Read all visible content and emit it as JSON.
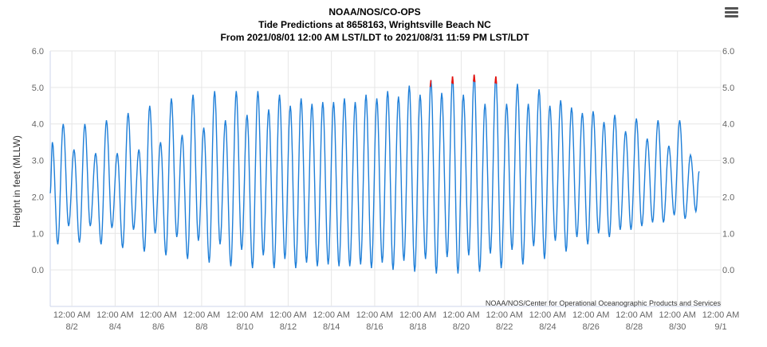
{
  "header": {
    "line1": "NOAA/NOS/CO-OPS",
    "line2": "Tide Predictions at 8658163, Wrightsville Beach NC",
    "line3": "From 2021/08/01 12:00 AM LST/LDT to 2021/08/31 11:59 PM LST/LDT"
  },
  "menu": {
    "icon": "hamburger-menu-icon"
  },
  "chart_data": {
    "type": "line",
    "title": "Tide Predictions at 8658163, Wrightsville Beach NC",
    "ylabel": "Height in feet (MLLW)",
    "xlabel": "",
    "ylim": [
      -1,
      6
    ],
    "xlim_days": [
      0,
      31
    ],
    "y_ticks": [
      "0.0",
      "1.0",
      "2.0",
      "3.0",
      "4.0",
      "5.0",
      "6.0"
    ],
    "x_ticks": [
      {
        "time": "12:00 AM",
        "date": "8/2"
      },
      {
        "time": "12:00 AM",
        "date": "8/4"
      },
      {
        "time": "12:00 AM",
        "date": "8/6"
      },
      {
        "time": "12:00 AM",
        "date": "8/8"
      },
      {
        "time": "12:00 AM",
        "date": "8/10"
      },
      {
        "time": "12:00 AM",
        "date": "8/12"
      },
      {
        "time": "12:00 AM",
        "date": "8/14"
      },
      {
        "time": "12:00 AM",
        "date": "8/16"
      },
      {
        "time": "12:00 AM",
        "date": "8/18"
      },
      {
        "time": "12:00 AM",
        "date": "8/20"
      },
      {
        "time": "12:00 AM",
        "date": "8/22"
      },
      {
        "time": "12:00 AM",
        "date": "8/24"
      },
      {
        "time": "12:00 AM",
        "date": "8/26"
      },
      {
        "time": "12:00 AM",
        "date": "8/28"
      },
      {
        "time": "12:00 AM",
        "date": "8/30"
      },
      {
        "time": "12:00 AM",
        "date": "9/1"
      }
    ],
    "grid": true,
    "highlight_threshold_ft": 5.0,
    "series": [
      {
        "color": "#1f7fd8",
        "highlight_color": "#e8120c",
        "highs": [
          [
            0.1,
            3.5
          ],
          [
            0.6,
            4.0
          ],
          [
            1.1,
            3.3
          ],
          [
            1.6,
            4.0
          ],
          [
            2.1,
            3.2
          ],
          [
            2.6,
            4.1
          ],
          [
            3.1,
            3.2
          ],
          [
            3.6,
            4.3
          ],
          [
            4.1,
            3.3
          ],
          [
            4.6,
            4.5
          ],
          [
            5.1,
            3.5
          ],
          [
            5.6,
            4.7
          ],
          [
            6.1,
            3.7
          ],
          [
            6.6,
            4.8
          ],
          [
            7.1,
            3.9
          ],
          [
            7.6,
            4.9
          ],
          [
            8.1,
            4.1
          ],
          [
            8.6,
            4.9
          ],
          [
            9.1,
            4.25
          ],
          [
            9.6,
            4.9
          ],
          [
            10.1,
            4.4
          ],
          [
            10.6,
            4.8
          ],
          [
            11.1,
            4.5
          ],
          [
            11.6,
            4.7
          ],
          [
            12.1,
            4.55
          ],
          [
            12.6,
            4.6
          ],
          [
            13.1,
            4.6
          ],
          [
            13.6,
            4.7
          ],
          [
            14.1,
            4.6
          ],
          [
            14.6,
            4.8
          ],
          [
            15.1,
            4.7
          ],
          [
            15.6,
            4.9
          ],
          [
            16.1,
            4.75
          ],
          [
            16.6,
            5.05
          ],
          [
            17.1,
            4.8
          ],
          [
            17.6,
            5.2
          ],
          [
            18.1,
            4.85
          ],
          [
            18.6,
            5.3
          ],
          [
            19.1,
            4.8
          ],
          [
            19.6,
            5.35
          ],
          [
            20.1,
            4.55
          ],
          [
            20.6,
            5.3
          ],
          [
            21.1,
            4.55
          ],
          [
            21.6,
            5.1
          ],
          [
            22.1,
            4.55
          ],
          [
            22.6,
            4.95
          ],
          [
            23.1,
            4.5
          ],
          [
            23.6,
            4.65
          ],
          [
            24.1,
            4.45
          ],
          [
            24.6,
            4.3
          ],
          [
            25.1,
            4.35
          ],
          [
            25.6,
            4.05
          ],
          [
            26.1,
            4.25
          ],
          [
            26.6,
            3.8
          ],
          [
            27.1,
            4.15
          ],
          [
            27.6,
            3.6
          ],
          [
            28.1,
            4.1
          ],
          [
            28.6,
            3.4
          ],
          [
            29.1,
            4.1
          ],
          [
            29.6,
            3.15
          ]
        ],
        "lows": [
          [
            0.35,
            0.7
          ],
          [
            0.85,
            1.2
          ],
          [
            1.35,
            0.75
          ],
          [
            1.85,
            1.2
          ],
          [
            2.35,
            0.7
          ],
          [
            2.85,
            1.15
          ],
          [
            3.35,
            0.6
          ],
          [
            3.85,
            1.1
          ],
          [
            4.35,
            0.5
          ],
          [
            4.85,
            1.0
          ],
          [
            5.35,
            0.4
          ],
          [
            5.85,
            0.9
          ],
          [
            6.35,
            0.3
          ],
          [
            6.85,
            0.8
          ],
          [
            7.35,
            0.2
          ],
          [
            7.85,
            0.7
          ],
          [
            8.35,
            0.1
          ],
          [
            8.85,
            0.55
          ],
          [
            9.35,
            0.05
          ],
          [
            9.85,
            0.4
          ],
          [
            10.35,
            0.05
          ],
          [
            10.85,
            0.3
          ],
          [
            11.35,
            0.05
          ],
          [
            11.85,
            0.2
          ],
          [
            12.35,
            0.1
          ],
          [
            12.85,
            0.15
          ],
          [
            13.35,
            0.1
          ],
          [
            13.85,
            0.1
          ],
          [
            14.35,
            0.15
          ],
          [
            14.85,
            0.05
          ],
          [
            15.35,
            0.2
          ],
          [
            15.85,
            0.0
          ],
          [
            16.35,
            0.25
          ],
          [
            16.85,
            -0.05
          ],
          [
            17.35,
            0.3
          ],
          [
            17.85,
            -0.1
          ],
          [
            18.35,
            0.35
          ],
          [
            18.85,
            -0.1
          ],
          [
            19.35,
            0.4
          ],
          [
            19.85,
            -0.05
          ],
          [
            20.35,
            0.45
          ],
          [
            20.85,
            0.05
          ],
          [
            21.35,
            0.55
          ],
          [
            21.85,
            0.15
          ],
          [
            22.35,
            0.65
          ],
          [
            22.85,
            0.3
          ],
          [
            23.35,
            0.8
          ],
          [
            23.85,
            0.5
          ],
          [
            24.35,
            0.9
          ],
          [
            24.85,
            0.7
          ],
          [
            25.35,
            1.0
          ],
          [
            25.85,
            0.9
          ],
          [
            26.35,
            1.1
          ],
          [
            26.85,
            1.1
          ],
          [
            27.35,
            1.2
          ],
          [
            27.85,
            1.3
          ],
          [
            28.35,
            1.3
          ],
          [
            28.85,
            1.5
          ],
          [
            29.35,
            1.4
          ],
          [
            29.85,
            1.6
          ]
        ]
      }
    ]
  },
  "credit": "NOAA/NOS/Center for Operational Oceanographic Products and Services"
}
